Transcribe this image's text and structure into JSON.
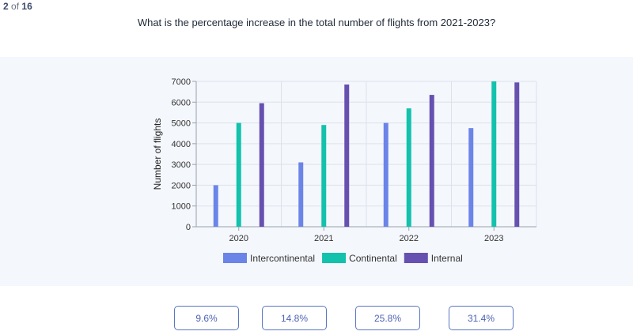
{
  "progress": {
    "current": "2",
    "of": "of",
    "total": "16"
  },
  "question": "What is the percentage increase in the total number of flights from 2021-2023?",
  "answers": [
    "9.6%",
    "14.8%",
    "25.8%",
    "31.4%"
  ],
  "colors": {
    "intercontinental": "#6b84e8",
    "continental": "#12c2ac",
    "internal": "#6650b0",
    "answer_text": "#4f63b4",
    "panel_bg": "#f4f7fc"
  },
  "chart_data": {
    "type": "bar",
    "categories": [
      "2020",
      "2021",
      "2022",
      "2023"
    ],
    "series": [
      {
        "name": "Intercontinental",
        "color": "#6b84e8",
        "values": [
          2000,
          3100,
          5000,
          4750
        ]
      },
      {
        "name": "Continental",
        "color": "#12c2ac",
        "values": [
          5000,
          4900,
          5700,
          7000
        ]
      },
      {
        "name": "Internal",
        "color": "#6650b0",
        "values": [
          5950,
          6850,
          6350,
          6950
        ]
      }
    ],
    "title": "",
    "xlabel": "",
    "ylabel": "Number of flights",
    "ylim": [
      0,
      7000
    ],
    "yticks": [
      "0",
      "1000",
      "2000",
      "3000",
      "4000",
      "5000",
      "6000",
      "7000"
    ],
    "grid": true,
    "legend": "bottom"
  }
}
